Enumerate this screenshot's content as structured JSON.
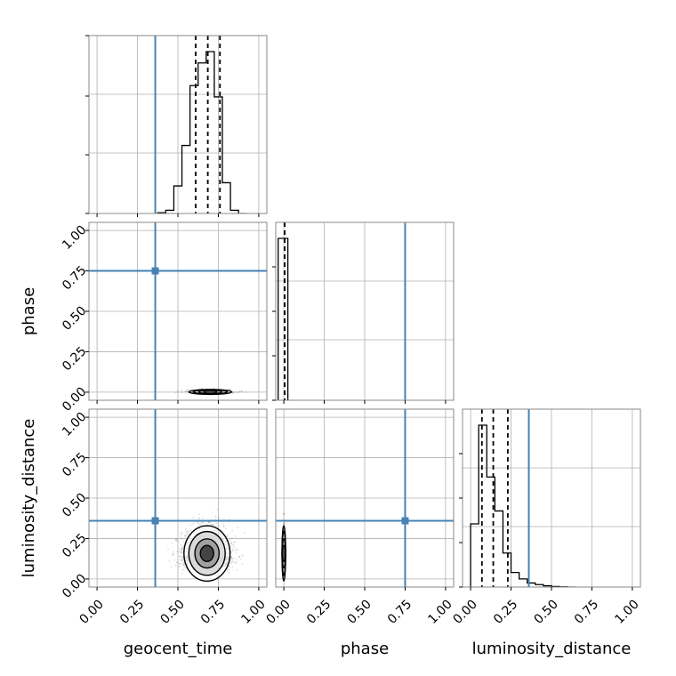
{
  "chart_data": {
    "type": "corner",
    "parameters": [
      "geocent_time",
      "phase",
      "luminosity_distance"
    ],
    "tick_labels": [
      "0.00",
      "0.25",
      "0.50",
      "0.75",
      "1.00"
    ],
    "axis_range": [
      -0.05,
      1.05
    ],
    "grid": true,
    "truth": {
      "geocent_time": 0.36,
      "phase": 0.75,
      "luminosity_distance": 0.36
    },
    "colors": {
      "truth": "#4682b4",
      "hist": "#000000",
      "grid": "#b0b0b0"
    },
    "marginals": {
      "geocent_time": {
        "bin_edges": [
          0.375,
          0.425,
          0.475,
          0.525,
          0.575,
          0.625,
          0.675,
          0.725,
          0.775,
          0.825,
          0.875,
          0.925
        ],
        "values": [
          0.005,
          0.02,
          0.17,
          0.42,
          0.79,
          0.93,
          1.0,
          0.72,
          0.19,
          0.02,
          0.0
        ],
        "quantiles": [
          0.61,
          0.685,
          0.76
        ]
      },
      "phase": {
        "bin_edges": [
          -0.035,
          -0.005,
          0.025
        ],
        "values": [
          1.0,
          1.0
        ],
        "quantiles": [
          0.005,
          0.005,
          0.005
        ]
      },
      "luminosity_distance": {
        "bin_edges": [
          0.0,
          0.05,
          0.1,
          0.15,
          0.2,
          0.25,
          0.3,
          0.35,
          0.4,
          0.45,
          0.5,
          0.55,
          0.6,
          0.65
        ],
        "values": [
          0.39,
          1.0,
          0.68,
          0.47,
          0.21,
          0.09,
          0.05,
          0.025,
          0.015,
          0.008,
          0.003,
          0.001,
          0.0
        ],
        "quantiles": [
          0.07,
          0.14,
          0.23
        ]
      }
    },
    "joint": [
      {
        "x": "geocent_time",
        "y": "phase",
        "center": [
          0.7,
          0.0
        ],
        "sigma": [
          0.07,
          0.008
        ],
        "n_points": 500
      },
      {
        "x": "geocent_time",
        "y": "luminosity_distance",
        "center": [
          0.68,
          0.14
        ],
        "sigma": [
          0.075,
          0.09
        ],
        "n_points": 2000
      },
      {
        "x": "phase",
        "y": "luminosity_distance",
        "center": [
          0.0,
          0.14
        ],
        "sigma": [
          0.004,
          0.09
        ],
        "n_points": 800
      }
    ]
  }
}
